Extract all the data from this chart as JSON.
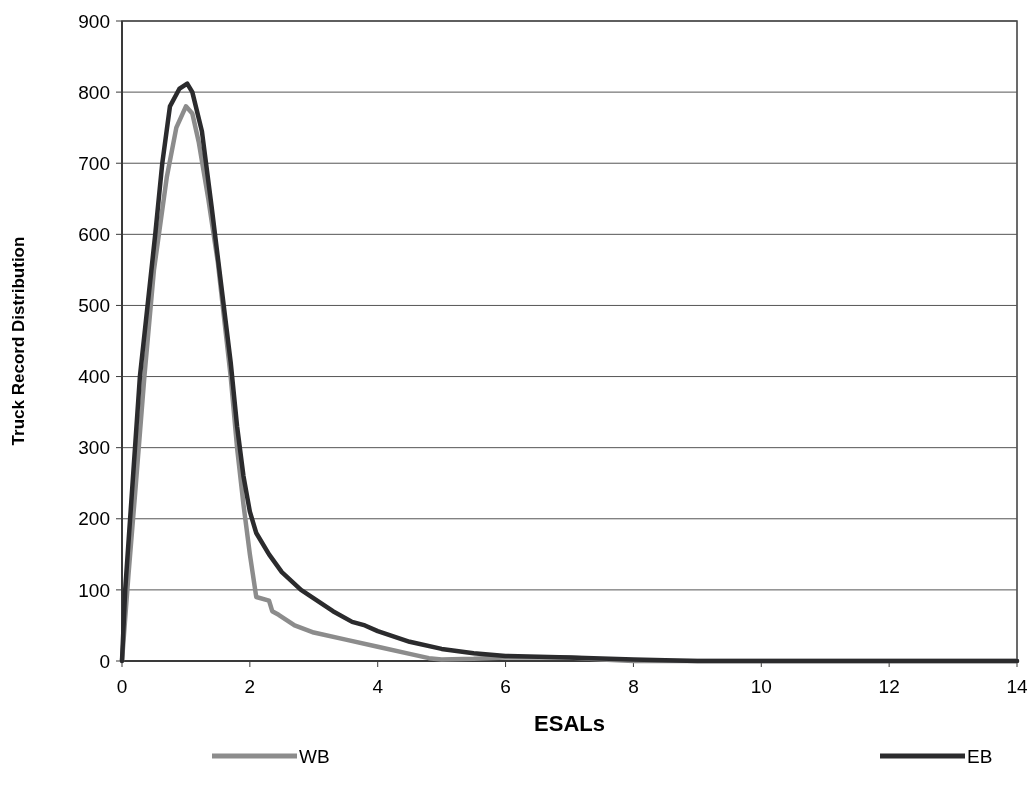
{
  "chart_data": {
    "type": "line",
    "xlabel": "ESALs",
    "ylabel": "Truck Record Distribution",
    "xlim": [
      0,
      14
    ],
    "xticks": [
      0,
      2,
      4,
      6,
      8,
      10,
      12,
      14
    ],
    "ylim": [
      0,
      900
    ],
    "yticks": [
      0,
      100,
      200,
      300,
      400,
      500,
      600,
      700,
      800,
      900
    ],
    "grid": "y",
    "legend": "bottom",
    "marker": "none",
    "series": [
      {
        "name": "WB",
        "color": "#8c8c8c",
        "x": [
          0,
          0.1,
          0.2,
          0.35,
          0.5,
          0.7,
          0.85,
          1.0,
          1.1,
          1.2,
          1.35,
          1.5,
          1.6,
          1.7,
          1.8,
          1.9,
          2.0,
          2.1,
          2.3,
          2.35,
          2.45,
          2.7,
          3.0,
          3.5,
          4.0,
          4.5,
          4.8,
          5.0,
          5.5,
          6.0,
          7.0,
          7.5,
          8.0,
          9.0,
          14.0
        ],
        "values": [
          0,
          120,
          230,
          400,
          550,
          680,
          750,
          780,
          770,
          730,
          650,
          560,
          480,
          400,
          300,
          220,
          150,
          90,
          85,
          70,
          65,
          50,
          40,
          30,
          20,
          10,
          4,
          2,
          3,
          5,
          5,
          2,
          0,
          0,
          0
        ]
      },
      {
        "name": "EB",
        "color": "#2b2b2d",
        "x": [
          0,
          0.05,
          0.15,
          0.28,
          0.4,
          0.52,
          0.63,
          0.75,
          0.9,
          1.02,
          1.1,
          1.25,
          1.4,
          1.55,
          1.7,
          1.8,
          1.9,
          2.0,
          2.1,
          2.3,
          2.5,
          2.8,
          3.0,
          3.3,
          3.6,
          3.8,
          4.0,
          4.5,
          5.0,
          5.5,
          6.0,
          7.0,
          8.0,
          9.0,
          14.0
        ],
        "values": [
          0,
          100,
          230,
          400,
          500,
          600,
          700,
          780,
          805,
          812,
          800,
          745,
          640,
          530,
          420,
          330,
          260,
          210,
          180,
          150,
          125,
          100,
          88,
          70,
          55,
          50,
          42,
          27,
          17,
          11,
          7,
          5,
          2,
          0,
          0
        ]
      }
    ]
  }
}
